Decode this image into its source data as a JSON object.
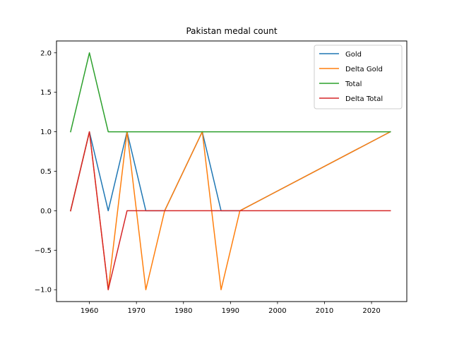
{
  "chart_data": {
    "type": "line",
    "title": "Pakistan medal count",
    "xlabel": "",
    "ylabel": "",
    "xlim": [
      1953,
      2027.5
    ],
    "ylim": [
      -1.15,
      2.15
    ],
    "xticks": [
      1960,
      1970,
      1980,
      1990,
      2000,
      2010,
      2020
    ],
    "yticks": [
      -1.0,
      -0.5,
      0.0,
      0.5,
      1.0,
      1.5,
      2.0
    ],
    "ytick_labels": [
      "−1.0",
      "−0.5",
      "0.0",
      "0.5",
      "1.0",
      "1.5",
      "2.0"
    ],
    "grid": false,
    "legend_position": "top-right",
    "x": [
      1956,
      1960,
      1964,
      1968,
      1972,
      1976,
      1984,
      1988,
      1992,
      2024
    ],
    "series": [
      {
        "name": "Gold",
        "color": "#1f77b4",
        "values": [
          0,
          1,
          0,
          1,
          0,
          0,
          1,
          0,
          0,
          1
        ]
      },
      {
        "name": "Delta Gold",
        "color": "#ff7f0e",
        "values": [
          0,
          1,
          -1,
          1,
          -1,
          0,
          1,
          -1,
          0,
          1
        ]
      },
      {
        "name": "Total",
        "color": "#2ca02c",
        "values": [
          1,
          2,
          1,
          1,
          1,
          1,
          1,
          1,
          1,
          1
        ]
      },
      {
        "name": "Delta Total",
        "color": "#d62728",
        "values": [
          0,
          1,
          -1,
          0,
          0,
          0,
          0,
          0,
          0,
          0
        ]
      }
    ]
  }
}
